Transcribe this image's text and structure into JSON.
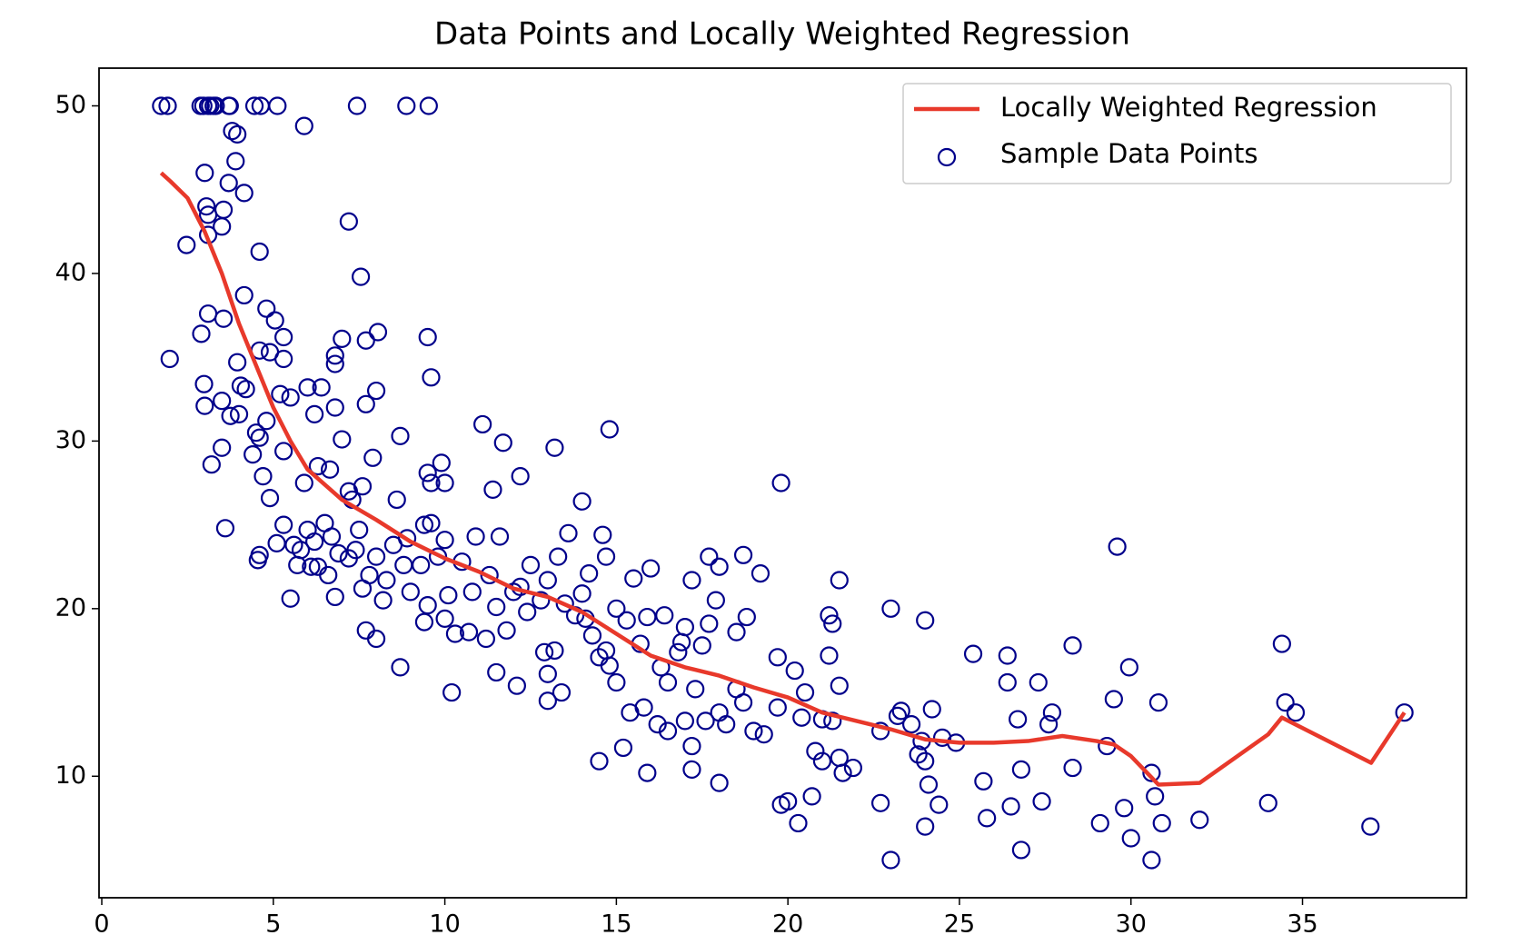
{
  "chart_data": {
    "type": "scatter",
    "title": "Data Points and Locally Weighted Regression",
    "xlim": [
      -0.08,
      39.78
    ],
    "ylim": [
      2.75,
      52.25
    ],
    "xticks": [
      0,
      5,
      10,
      15,
      20,
      25,
      30,
      35
    ],
    "yticks": [
      10,
      20,
      30,
      40,
      50
    ],
    "grid": false,
    "legend": "upper right",
    "series": [
      {
        "name": "Locally Weighted Regression",
        "type": "line",
        "color": "#e8392b",
        "x": [
          1.73,
          2.0,
          2.5,
          3.0,
          3.5,
          4.0,
          4.5,
          5.0,
          5.5,
          6.0,
          7.0,
          8.0,
          9.0,
          10.0,
          11.0,
          12.0,
          13.0,
          14.0,
          15.0,
          16.0,
          17.0,
          18.0,
          19.0,
          20.0,
          21.0,
          22.0,
          23.0,
          24.0,
          25.0,
          26.0,
          27.0,
          28.0,
          29.0,
          29.5,
          30.0,
          30.8,
          32.0,
          34.0,
          34.4,
          37.0,
          37.97
        ],
        "values": [
          46,
          45.5,
          44.5,
          42.5,
          40,
          37,
          34.5,
          32,
          30,
          28.3,
          26.5,
          25.3,
          24,
          23,
          22.2,
          21.2,
          20.7,
          19.8,
          18.5,
          17.2,
          16.5,
          16,
          15.3,
          14.7,
          13.8,
          13.3,
          12.8,
          12.2,
          12,
          12,
          12.1,
          12.4,
          12.1,
          11.9,
          11.2,
          9.5,
          9.6,
          12.5,
          13.5,
          10.8,
          13.8
        ]
      },
      {
        "name": "Sample Data Points",
        "type": "scatter",
        "color": "#00008b",
        "x": [
          1.73,
          1.92,
          2.88,
          2.96,
          3.1,
          3.16,
          3.26,
          3.32,
          3.7,
          3.73,
          4.45,
          4.63,
          5.12,
          7.44,
          8.88,
          9.53,
          5.9,
          3.8,
          3.95,
          3.0,
          3.9,
          3.7,
          4.15,
          3.05,
          3.55,
          3.1,
          3.5,
          3.1,
          2.47,
          4.6,
          7.2,
          7.55,
          4.15,
          3.1,
          3.55,
          4.8,
          5.05,
          2.9,
          5.3,
          7,
          7.7,
          8.05,
          9.5,
          1.98,
          4.6,
          4.9,
          6.8,
          6.8,
          5.3,
          3.95,
          9.6,
          2.98,
          4.05,
          4.2,
          6.0,
          6.4,
          8.0,
          5.2,
          5.5,
          3.5,
          3,
          6.8,
          7.7,
          3.75,
          4,
          4.8,
          6.2,
          4.5,
          4.6,
          7,
          8.7,
          3.5,
          4.4,
          5.3,
          7.9,
          11.1,
          11.7,
          13.2,
          14.8,
          3.2,
          6.3,
          6.65,
          9.5,
          9.9,
          9.6,
          10,
          11.4,
          12.2,
          4.7,
          5.9,
          7.2,
          7.3,
          8.6,
          4.9,
          7.6,
          14,
          19.8,
          29.6,
          3.6,
          4.55,
          5.7,
          6.3,
          5.5,
          6.8,
          7.7,
          8,
          8.7,
          10.2,
          11.5,
          12.1,
          13,
          13.4,
          14.5,
          15.2,
          15.9,
          17.2,
          18,
          19.8,
          20,
          20.3,
          20.7,
          22.7,
          23,
          24,
          24.1,
          24.4,
          25.7,
          25.8,
          26.5,
          26.8,
          27.4,
          28.3,
          29.1,
          29.8,
          30,
          30.6,
          30.7,
          30.6,
          30.9,
          30.8,
          32,
          34,
          36.98,
          37.97,
          34.4,
          34.5,
          34.8,
          29.95,
          29.5,
          28.3,
          27.7,
          27.6,
          26.4,
          25.4,
          26.4,
          27.3,
          26.7,
          26.8,
          29.3,
          23,
          24,
          21.5,
          21.2,
          21.3,
          21.2,
          21.5,
          19.7,
          20.2,
          20.5,
          21,
          21.3,
          20.4,
          20.8,
          21,
          21.6,
          21.9,
          21.5,
          22.7,
          23.2,
          23.3,
          23.9,
          24.2,
          23.6,
          23.8,
          24,
          24.5,
          24.9,
          18.7,
          19.2,
          17.2,
          17.7,
          18,
          18.5,
          17.9,
          18.8,
          17.5,
          16.4,
          15.5,
          16,
          14.7,
          14.2,
          14.6,
          13.6,
          13.3,
          12.5,
          11.6,
          10.9,
          10,
          9.4,
          9.6,
          9.3,
          8.8,
          8.5,
          7.5,
          6.5,
          6,
          5.3,
          5.6,
          6.1,
          6.6,
          7.2,
          7.8,
          8.3,
          9,
          9.5,
          10,
          10.3,
          10.7,
          11.2,
          11.8,
          12.4,
          12.9,
          13,
          13.2,
          14.1,
          14.3,
          14.5,
          14.8,
          15,
          15.4,
          15.8,
          16.2,
          16.5,
          16.5,
          17,
          17.2,
          17.6,
          18,
          18.2,
          18.5,
          18.7,
          19,
          19.3,
          19.7,
          16.8,
          17,
          17.7,
          17.3,
          16.3,
          15.7,
          15.3,
          14.7,
          13.8,
          12.8,
          12.2,
          11.5,
          10.8,
          10.1,
          9.4,
          8.2,
          7.6,
          6.9,
          5.8,
          5.1,
          4.6,
          6.2,
          6.7,
          7.4,
          8,
          8.9,
          9.8,
          10.5,
          11.3,
          12,
          13,
          13.5,
          14,
          15,
          15.9,
          16.9
        ],
        "values": [
          50,
          50,
          50,
          50,
          50,
          50,
          50,
          50,
          50,
          50,
          50,
          50,
          50,
          50,
          50,
          50,
          48.8,
          48.5,
          48.3,
          46,
          46.7,
          45.4,
          44.8,
          44,
          43.8,
          43.5,
          42.8,
          42.3,
          41.7,
          41.3,
          43.1,
          39.8,
          38.7,
          37.6,
          37.3,
          37.9,
          37.2,
          36.4,
          36.2,
          36.1,
          36,
          36.5,
          36.2,
          34.9,
          35.4,
          35.3,
          35.1,
          34.6,
          34.9,
          34.7,
          33.8,
          33.4,
          33.3,
          33.1,
          33.2,
          33.2,
          33,
          32.8,
          32.6,
          32.4,
          32.1,
          32,
          32.2,
          31.5,
          31.6,
          31.2,
          31.6,
          30.5,
          30.2,
          30.1,
          30.3,
          29.6,
          29.2,
          29.4,
          29,
          31,
          29.9,
          29.6,
          30.7,
          28.6,
          28.5,
          28.3,
          28.1,
          28.7,
          27.5,
          27.5,
          27.1,
          27.9,
          27.9,
          27.5,
          27,
          26.5,
          26.5,
          26.6,
          27.3,
          26.4,
          27.5,
          23.7,
          24.8,
          22.9,
          22.6,
          22.5,
          20.6,
          20.7,
          18.7,
          18.2,
          16.5,
          15,
          16.2,
          15.4,
          14.5,
          15,
          10.9,
          11.7,
          10.2,
          10.4,
          9.6,
          8.3,
          8.5,
          7.2,
          8.8,
          8.4,
          5,
          7,
          9.5,
          8.3,
          9.7,
          7.5,
          8.2,
          5.6,
          8.5,
          10.5,
          7.2,
          8.1,
          6.3,
          5,
          8.8,
          10.2,
          7.2,
          14.4,
          7.4,
          8.4,
          7,
          13.8,
          17.9,
          14.4,
          13.8,
          16.5,
          14.6,
          17.8,
          13.8,
          13.1,
          17.2,
          17.3,
          15.6,
          15.6,
          13.4,
          10.4,
          11.8,
          20,
          19.3,
          21.7,
          19.6,
          19.1,
          17.2,
          15.4,
          17.1,
          16.3,
          15,
          13.4,
          13.3,
          13.5,
          11.5,
          10.9,
          10.2,
          10.5,
          11.1,
          12.7,
          13.6,
          13.9,
          12.1,
          14,
          13.1,
          11.3,
          10.9,
          12.3,
          12,
          23.2,
          22.1,
          21.7,
          23.1,
          22.5,
          18.6,
          20.5,
          19.5,
          17.8,
          19.6,
          21.8,
          22.4,
          23.1,
          22.1,
          24.4,
          24.5,
          23.1,
          22.6,
          24.3,
          24.3,
          24.1,
          25,
          25.1,
          22.6,
          22.6,
          23.8,
          24.7,
          25.1,
          24.7,
          25,
          23.8,
          22.5,
          22,
          23,
          22,
          21.7,
          21,
          20.2,
          19.4,
          18.5,
          18.6,
          18.2,
          18.7,
          19.8,
          17.4,
          16.1,
          17.5,
          19.4,
          18.4,
          17.1,
          16.6,
          15.6,
          13.8,
          14.1,
          13.1,
          12.7,
          15.6,
          13.3,
          11.8,
          13.3,
          13.8,
          13.1,
          15.2,
          14.4,
          12.7,
          12.5,
          14.1,
          17.4,
          18.9,
          19.1,
          15.2,
          16.5,
          17.9,
          19.3,
          17.5,
          19.6,
          20.5,
          21.3,
          20.1,
          21,
          20.8,
          19.2,
          20.5,
          21.2,
          23.3,
          23.5,
          23.9,
          23.2,
          24,
          24.3,
          23.5,
          23.1,
          24.2,
          23.1,
          22.8,
          22,
          21,
          21.7,
          20.3,
          20.9,
          20,
          19.5,
          18
        ]
      }
    ]
  }
}
